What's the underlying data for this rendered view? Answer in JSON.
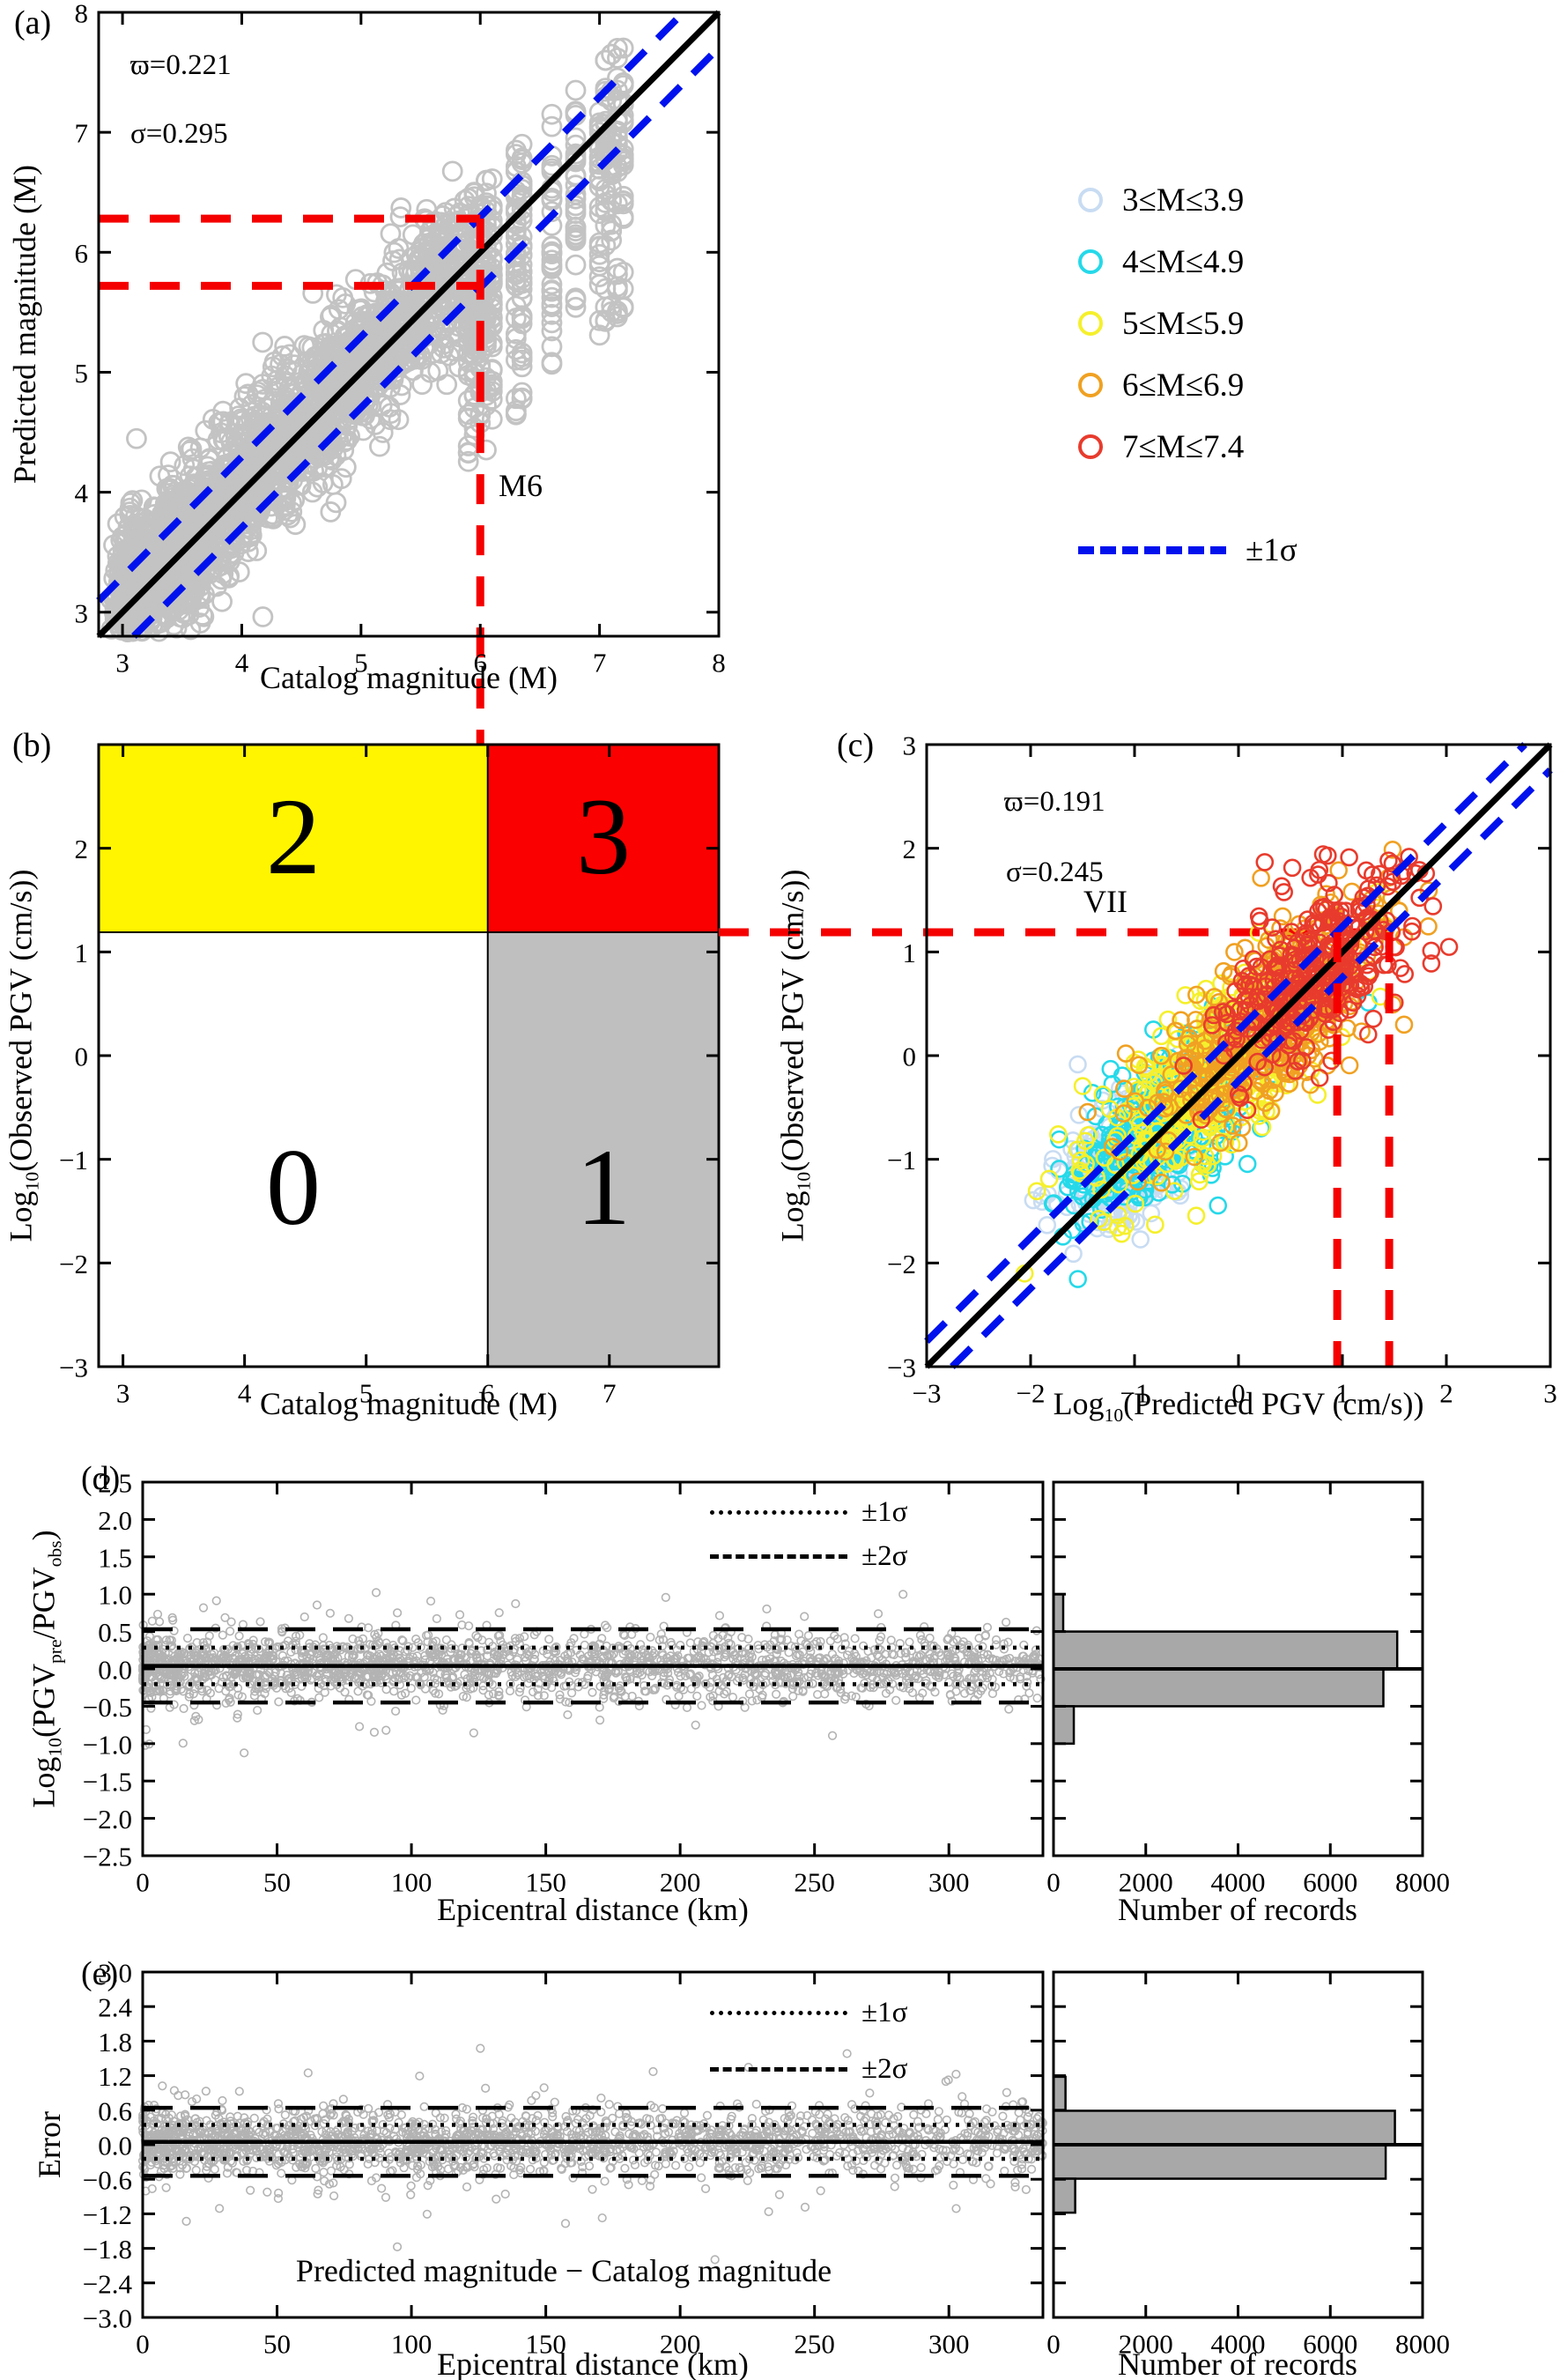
{
  "legend": {
    "items": [
      {
        "label": "3≤M≤3.9",
        "color": "#C8DCF2"
      },
      {
        "label": "4≤M≤4.9",
        "color": "#25D9E9"
      },
      {
        "label": "5≤M≤5.9",
        "color": "#F5F02C"
      },
      {
        "label": "6≤M≤6.9",
        "color": "#F0A122"
      },
      {
        "label": "7≤M≤7.4",
        "color": "#E83B2D"
      }
    ],
    "sigma_label": "±1σ"
  },
  "colors": {
    "identity_line": "#000000",
    "sigma_line_blue": "#0011EE",
    "threshold_red": "#F50000",
    "gray_scatter": "#C3C3C3",
    "de_scatter": "#B3B3B3",
    "hist_fill": "#A8A8A8",
    "quad_yellow": "#FFF500",
    "quad_red": "#FB0000",
    "quad_gray": "#BFBFBF"
  },
  "chart_data": [
    {
      "type": "scatter",
      "panel": "a",
      "xlabel": "Catalog magnitude (M)",
      "ylabel": "Predicted magnitude (M)",
      "xlim": [
        2.8,
        8
      ],
      "ylim": [
        2.8,
        8
      ],
      "xticks": [
        3,
        4,
        5,
        6,
        7,
        8
      ],
      "yticks": [
        3,
        4,
        5,
        6,
        7,
        8
      ],
      "annotations": {
        "panel_label": "(a)",
        "stat_omega": "ϖ=0.221",
        "stat_sigma": "σ=0.295",
        "marker_label": "M6"
      },
      "identity_line": {
        "slope": 1,
        "intercept": 0
      },
      "sigma_band_halfwidth": 0.295,
      "threshold_marker": {
        "catalog_magnitude": 6,
        "predicted_band": [
          5.72,
          6.28
        ]
      },
      "points_summary": {
        "marker": "open-circle",
        "color": "#C3C3C3",
        "approx_count": 3000,
        "catalog_range": [
          2.9,
          7.3
        ],
        "residual_sigma": 0.3,
        "discrete_columns": [
          5.9,
          5.95,
          6,
          6.05,
          6.1,
          6.3,
          6.35,
          6.6,
          6.8,
          7,
          7.05,
          7.1,
          7.15,
          7.2
        ]
      }
    },
    {
      "type": "quadrant-map",
      "panel": "b",
      "xlabel": "Catalog magnitude (M)",
      "ylabel": "Log10(Observed PGV (cm/s))",
      "ylabel_parts": {
        "p0": "Log",
        "p1": "10",
        "p2": "(Observed PGV (cm/s))"
      },
      "xlim": [
        2.8,
        7.9
      ],
      "ylim": [
        -3,
        3
      ],
      "xticks": [
        3,
        4,
        5,
        6,
        7
      ],
      "yticks": [
        2,
        1,
        0,
        -1,
        -2,
        -3
      ],
      "thresholds": {
        "catalog_magnitude": 6,
        "log10_pgv": 1.19
      },
      "quadrants": [
        {
          "label": "0",
          "position": "bottom-left",
          "color": "#FFFFFF"
        },
        {
          "label": "1",
          "position": "bottom-right",
          "color": "#BFBFBF"
        },
        {
          "label": "2",
          "position": "top-left",
          "color": "#FFF500"
        },
        {
          "label": "3",
          "position": "top-right",
          "color": "#FB0000"
        }
      ],
      "annotations": {
        "panel_label": "(b)"
      }
    },
    {
      "type": "scatter",
      "panel": "c",
      "xlabel": "Log10(Predicted PGV (cm/s))",
      "xlabel_parts": {
        "p0": "Log",
        "p1": "10",
        "p2": "(Predicted PGV (cm/s))"
      },
      "ylabel": "Log10(Observed PGV (cm/s))",
      "ylabel_parts": {
        "p0": "Log",
        "p1": "10",
        "p2": "(Observed PGV (cm/s))"
      },
      "xlim": [
        -3,
        3
      ],
      "ylim": [
        -3,
        3
      ],
      "xticks": [
        -3,
        -2,
        -1,
        0,
        1,
        2,
        3
      ],
      "yticks": [
        -3,
        -2,
        -1,
        0,
        1,
        2,
        3
      ],
      "annotations": {
        "panel_label": "(c)",
        "stat_omega": "ϖ=0.191",
        "stat_sigma": "σ=0.245",
        "intensity_label": "VII"
      },
      "identity_line": {
        "slope": 1,
        "intercept": 0
      },
      "sigma_band_halfwidth": 0.245,
      "threshold_marker": {
        "log10_pgv": 1.19,
        "predicted_band": [
          0.95,
          1.45
        ]
      },
      "series": [
        {
          "name": "3≤M≤3.9",
          "color": "#C8DCF2",
          "count": 260,
          "center": -1.05,
          "along_sigma": 0.32,
          "cross_sigma": 0.17
        },
        {
          "name": "4≤M≤4.9",
          "color": "#25D9E9",
          "count": 330,
          "center": -0.72,
          "along_sigma": 0.42,
          "cross_sigma": 0.19
        },
        {
          "name": "5≤M≤5.9",
          "color": "#F5F02C",
          "count": 380,
          "center": -0.3,
          "along_sigma": 0.52,
          "cross_sigma": 0.21
        },
        {
          "name": "6≤M≤6.9",
          "color": "#F0A122",
          "count": 430,
          "center": 0.28,
          "along_sigma": 0.52,
          "cross_sigma": 0.21
        },
        {
          "name": "7≤M≤7.4",
          "color": "#E83B2D",
          "count": 330,
          "center": 0.8,
          "along_sigma": 0.42,
          "cross_sigma": 0.21
        }
      ]
    },
    {
      "type": "scatter",
      "panel": "d",
      "xlabel": "Epicentral distance (km)",
      "ylabel": "Log10(PGVpre/PGVobs)",
      "ylabel_parts": {
        "p0": "Log",
        "p1": "10",
        "p2": "(PGV",
        "p3": "pre",
        "p4": "/PGV",
        "p5": "obs",
        "p6": ")"
      },
      "xlim": [
        0,
        335
      ],
      "ylim": [
        -2.5,
        2.5
      ],
      "xticks": [
        0,
        50,
        100,
        150,
        200,
        250,
        300
      ],
      "yticks": [
        2.5,
        2,
        1.5,
        1,
        0.5,
        0,
        -0.5,
        -1,
        -1.5,
        -2,
        -2.5
      ],
      "mean_line": 0.04,
      "sigma1": 0.245,
      "sigma2": 0.49,
      "legend": {
        "sigma1_label": "±1σ",
        "sigma2_label": "±2σ"
      },
      "annotations": {
        "panel_label": "(d)"
      },
      "points_summary": {
        "marker": "open-circle",
        "color": "#B3B3B3",
        "approx_count": 2100,
        "y_sigma": 0.22
      }
    },
    {
      "type": "bar",
      "panel": "d-histogram",
      "orientation": "horizontal",
      "xlabel": "Number of records",
      "xlim": [
        0,
        8000
      ],
      "xticks": [
        0,
        2000,
        4000,
        6000,
        8000
      ],
      "ylim": [
        -2.5,
        2.5
      ],
      "bins": [
        {
          "range": [
            0.5,
            1.0
          ],
          "count": 210
        },
        {
          "range": [
            0.0,
            0.5
          ],
          "count": 7450
        },
        {
          "range": [
            -0.5,
            0.0
          ],
          "count": 7150
        },
        {
          "range": [
            -1.0,
            -0.5
          ],
          "count": 440
        }
      ]
    },
    {
      "type": "scatter",
      "panel": "e",
      "xlabel": "Epicentral distance (km)",
      "ylabel": "Error",
      "xlim": [
        0,
        335
      ],
      "ylim": [
        -3,
        3
      ],
      "xticks": [
        0,
        50,
        100,
        150,
        200,
        250,
        300
      ],
      "yticks": [
        3,
        2.4,
        1.8,
        1.2,
        0.6,
        0,
        -0.6,
        -1.2,
        -1.8,
        -2.4,
        -3
      ],
      "mean_line": 0.05,
      "sigma1": 0.295,
      "sigma2": 0.59,
      "legend": {
        "sigma1_label": "±1σ",
        "sigma2_label": "±2σ"
      },
      "annotations": {
        "panel_label": "(e)",
        "definition": "Predicted magnitude − Catalog magnitude"
      },
      "points_summary": {
        "marker": "open-circle",
        "color": "#B3B3B3",
        "approx_count": 2100,
        "y_sigma": 0.27
      }
    },
    {
      "type": "bar",
      "panel": "e-histogram",
      "orientation": "horizontal",
      "xlabel": "Number of records",
      "xlim": [
        0,
        8000
      ],
      "xticks": [
        0,
        2000,
        4000,
        6000,
        8000
      ],
      "ylim": [
        -3,
        3
      ],
      "bins": [
        {
          "range": [
            0.59,
            1.18
          ],
          "count": 260
        },
        {
          "range": [
            0.0,
            0.59
          ],
          "count": 7400
        },
        {
          "range": [
            -0.59,
            0.0
          ],
          "count": 7200
        },
        {
          "range": [
            -1.18,
            -0.59
          ],
          "count": 470
        }
      ]
    }
  ]
}
